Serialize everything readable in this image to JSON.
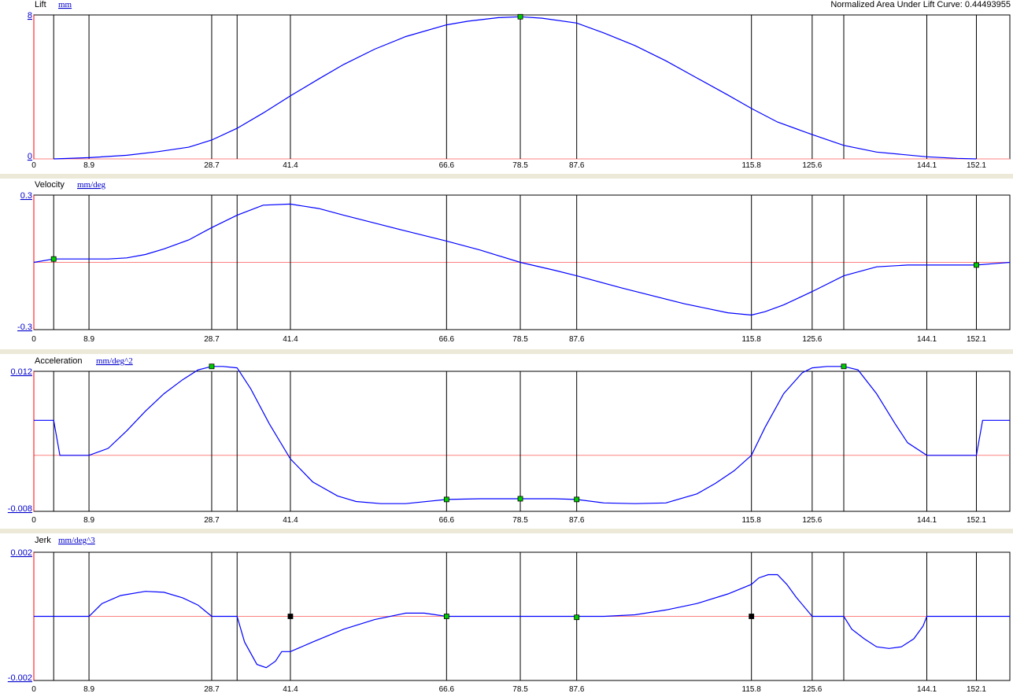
{
  "header": {
    "area_label": "Normalized Area Under Lift Curve: 0.44493955"
  },
  "axis": {
    "tick_labels": [
      "0",
      "8.9",
      "28.7",
      "41.4",
      "66.6",
      "78.5",
      "87.6",
      "115.8",
      "125.6",
      "144.1",
      "152.1"
    ],
    "tick_values": [
      0,
      8.9,
      28.7,
      41.4,
      66.6,
      78.5,
      87.6,
      115.8,
      125.6,
      144.1,
      152.1
    ],
    "xlim": [
      0,
      157.5
    ],
    "event_lines": [
      3.2,
      8.9,
      28.7,
      32.8,
      41.4,
      66.6,
      78.5,
      87.6,
      115.8,
      125.6,
      130.7,
      144.1,
      152.1
    ]
  },
  "colors": {
    "curve": "#0000ff",
    "zero_line": "#ff8080",
    "grid": "#000000",
    "left_axis": "#ff0000",
    "marker_green": "#00cc00",
    "marker_black": "#000000",
    "separator": "#ece9d8"
  },
  "chart_data": [
    {
      "type": "line",
      "id": "lift",
      "title": "Lift",
      "unit": "mm",
      "ymax_label": "8",
      "ymin_label": "0",
      "ylim": [
        0,
        8
      ],
      "x": [
        3.2,
        5,
        8.9,
        15,
        20,
        25,
        28.7,
        32.8,
        37,
        41.4,
        46,
        50,
        55,
        60,
        66.6,
        70,
        75,
        78.5,
        82,
        87.6,
        92,
        97,
        102,
        107,
        112,
        115.8,
        120,
        125.6,
        130.7,
        136,
        144.1,
        149,
        152.1
      ],
      "y": [
        0,
        0.02,
        0.07,
        0.2,
        0.4,
        0.65,
        1.05,
        1.7,
        2.55,
        3.5,
        4.45,
        5.25,
        6.1,
        6.8,
        7.45,
        7.65,
        7.85,
        7.9,
        7.82,
        7.55,
        7.0,
        6.3,
        5.45,
        4.5,
        3.55,
        2.8,
        2.05,
        1.35,
        0.75,
        0.38,
        0.12,
        0.03,
        0
      ]
    },
    {
      "type": "line",
      "id": "velocity",
      "title": "Velocity",
      "unit": "mm/deg",
      "ymax_label": "0.3",
      "ymin_label": "-0.3",
      "ylim": [
        -0.3,
        0.3
      ],
      "x": [
        0,
        3.2,
        8.9,
        12,
        15,
        18,
        21,
        25,
        28.7,
        32.8,
        37,
        41.4,
        46,
        50,
        55,
        60,
        66.6,
        72,
        78.5,
        84,
        87.6,
        95,
        105,
        112,
        115.8,
        118,
        121,
        125.6,
        130.7,
        136,
        141,
        144.1,
        152.1,
        157.5
      ],
      "y": [
        0,
        0.015,
        0.015,
        0.015,
        0.02,
        0.035,
        0.06,
        0.1,
        0.155,
        0.21,
        0.255,
        0.26,
        0.24,
        0.21,
        0.175,
        0.14,
        0.095,
        0.055,
        0.0,
        -0.035,
        -0.06,
        -0.115,
        -0.185,
        -0.225,
        -0.235,
        -0.22,
        -0.19,
        -0.13,
        -0.06,
        -0.02,
        -0.012,
        -0.012,
        -0.012,
        0
      ]
    },
    {
      "type": "line",
      "id": "acceleration",
      "title": "Acceleration",
      "unit": "mm/deg^2",
      "ymax_label": "0.012",
      "ymin_label": "-0.008",
      "ylim": [
        -0.008,
        0.012
      ],
      "x": [
        0,
        3.2,
        4.2,
        8.9,
        12,
        15,
        18,
        21,
        24,
        26.5,
        28.7,
        30.5,
        32.8,
        35,
        38,
        41.4,
        45,
        49,
        52,
        56,
        60,
        66.6,
        72,
        78.5,
        84,
        87.6,
        92,
        97,
        102,
        107,
        110,
        113,
        115.8,
        118,
        121,
        124,
        125.6,
        128,
        130.7,
        133,
        136,
        139,
        141,
        144.1,
        149,
        152.1,
        153.1,
        157.5
      ],
      "y": [
        0.005,
        0.005,
        0.0,
        0.0,
        0.001,
        0.0035,
        0.0063,
        0.0088,
        0.0108,
        0.0122,
        0.0127,
        0.0127,
        0.0125,
        0.0095,
        0.0045,
        -0.0005,
        -0.0038,
        -0.0058,
        -0.0066,
        -0.0069,
        -0.0069,
        -0.0063,
        -0.0062,
        -0.0062,
        -0.0062,
        -0.0063,
        -0.0068,
        -0.0069,
        -0.0068,
        -0.0055,
        -0.004,
        -0.0022,
        0.0,
        0.004,
        0.0088,
        0.0118,
        0.0125,
        0.0127,
        0.0127,
        0.0122,
        0.0088,
        0.0045,
        0.0018,
        0.0,
        0.0,
        0.0,
        0.005,
        0.005
      ]
    },
    {
      "type": "line",
      "id": "jerk",
      "title": "Jerk",
      "unit": "mm/deg^3",
      "ymax_label": "0.002",
      "ymin_label": "-0.002",
      "ylim": [
        -0.002,
        0.002
      ],
      "x": [
        0,
        8.9,
        11,
        14,
        18,
        21,
        24,
        26.5,
        28.7,
        32.8,
        34,
        36,
        37.5,
        39,
        40,
        41.4,
        45,
        50,
        55,
        60,
        63,
        66.6,
        72,
        78.5,
        84,
        87.6,
        92,
        97,
        102,
        107,
        112,
        115.8,
        117,
        118.5,
        120,
        121.5,
        123,
        125.6,
        130.7,
        132,
        134,
        136,
        138,
        140,
        142,
        143.5,
        144.1,
        152.1,
        157.5
      ],
      "y": [
        0,
        0,
        0.0004,
        0.00065,
        0.00078,
        0.00075,
        0.00058,
        0.00035,
        0,
        0,
        -0.0008,
        -0.0015,
        -0.0016,
        -0.0014,
        -0.0011,
        -0.0011,
        -0.0008,
        -0.0004,
        -0.0001,
        0.0001,
        0.0001,
        0,
        0,
        0,
        0,
        0,
        0,
        5e-05,
        0.0002,
        0.0004,
        0.0007,
        0.001,
        0.0012,
        0.0013,
        0.0013,
        0.001,
        0.0006,
        0,
        0,
        -0.0004,
        -0.0007,
        -0.00095,
        -0.001,
        -0.00095,
        -0.0007,
        -0.0003,
        0,
        0,
        0
      ]
    }
  ],
  "markers": {
    "lift": [
      {
        "x": 78.5,
        "y": 7.9,
        "color": "green"
      }
    ],
    "velocity": [
      {
        "x": 3.2,
        "y": 0.015,
        "color": "green"
      },
      {
        "x": 152.1,
        "y": -0.012,
        "color": "green"
      }
    ],
    "acceleration": [
      {
        "x": 28.7,
        "y": 0.0127,
        "color": "green"
      },
      {
        "x": 66.6,
        "y": -0.0063,
        "color": "green"
      },
      {
        "x": 78.5,
        "y": -0.0062,
        "color": "green"
      },
      {
        "x": 87.6,
        "y": -0.0063,
        "color": "green"
      },
      {
        "x": 130.7,
        "y": 0.0127,
        "color": "green"
      }
    ],
    "jerk": [
      {
        "x": 41.4,
        "y": 0,
        "color": "black"
      },
      {
        "x": 66.6,
        "y": 0,
        "color": "green"
      },
      {
        "x": 87.6,
        "y": -3e-05,
        "color": "green"
      },
      {
        "x": 115.8,
        "y": 0,
        "color": "black"
      }
    ]
  }
}
